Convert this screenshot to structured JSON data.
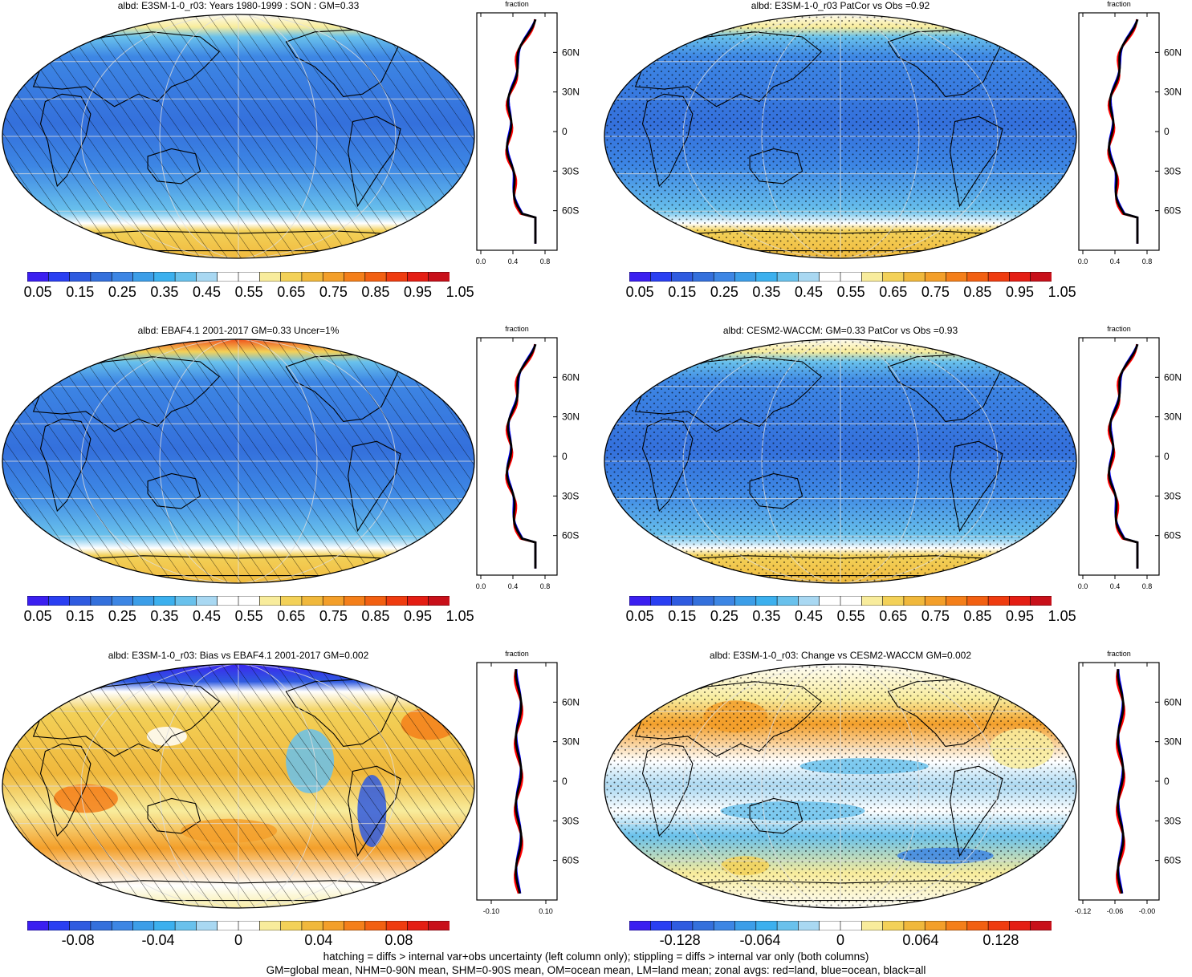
{
  "panels": [
    {
      "id": "p1",
      "title": "albd: E3SM-1-0_r03: Years 1980-1999 : SON : GM=0.33",
      "scheme": "abs",
      "overlay": "hatch",
      "colorbar_labels": [
        "0.05",
        "0.15",
        "0.25",
        "0.35",
        "0.45",
        "0.55",
        "0.65",
        "0.75",
        "0.85",
        "0.95",
        "1.05"
      ],
      "zonal": {
        "title": "fraction",
        "x_ticks": [
          "0.0",
          "0.4",
          "0.8"
        ],
        "lat_labels": [
          "60N",
          "30N",
          "0",
          "30S",
          "60S"
        ]
      }
    },
    {
      "id": "p2",
      "title": "albd: E3SM-1-0_r03 PatCor vs Obs =0.92",
      "scheme": "abs",
      "overlay": "stipple",
      "colorbar_labels": [
        "0.05",
        "0.15",
        "0.25",
        "0.35",
        "0.45",
        "0.55",
        "0.65",
        "0.75",
        "0.85",
        "0.95",
        "1.05"
      ],
      "zonal": {
        "title": "fraction",
        "x_ticks": [
          "0.0",
          "0.4",
          "0.8"
        ],
        "lat_labels": [
          "60N",
          "30N",
          "0",
          "30S",
          "60S"
        ]
      }
    },
    {
      "id": "p3",
      "title": "albd: EBAF4.1 2001-2017 GM=0.33 Uncer=1%",
      "scheme": "abs",
      "overlay": "hatch",
      "colorbar_labels": [
        "0.05",
        "0.15",
        "0.25",
        "0.35",
        "0.45",
        "0.55",
        "0.65",
        "0.75",
        "0.85",
        "0.95",
        "1.05"
      ],
      "zonal": {
        "title": "fraction",
        "x_ticks": [
          "0.0",
          "0.4",
          "0.8"
        ],
        "lat_labels": [
          "60N",
          "30N",
          "0",
          "30S",
          "60S"
        ]
      }
    },
    {
      "id": "p4",
      "title": "albd: CESM2-WACCM: GM=0.33 PatCor vs Obs =0.93",
      "scheme": "abs",
      "overlay": "stipple",
      "colorbar_labels": [
        "0.05",
        "0.15",
        "0.25",
        "0.35",
        "0.45",
        "0.55",
        "0.65",
        "0.75",
        "0.85",
        "0.95",
        "1.05"
      ],
      "zonal": {
        "title": "fraction",
        "x_ticks": [
          "0.0",
          "0.4",
          "0.8"
        ],
        "lat_labels": [
          "60N",
          "30N",
          "0",
          "30S",
          "60S"
        ]
      }
    },
    {
      "id": "p5",
      "title": "albd: E3SM-1-0_r03: Bias vs EBAF4.1 2001-2017  GM=0.002",
      "scheme": "diff",
      "overlay": "hatch",
      "colorbar_labels": [
        "-0.08",
        "-0.04",
        "0",
        "0.04",
        "0.08"
      ],
      "zonal": {
        "title": "fraction",
        "x_ticks": [
          "-0.10",
          "0.10"
        ],
        "lat_labels": [
          "60N",
          "30N",
          "0",
          "30S",
          "60S"
        ]
      }
    },
    {
      "id": "p6",
      "title": "albd: E3SM-1-0_r03: Change vs CESM2-WACCM GM=0.002",
      "scheme": "diff",
      "overlay": "stipple",
      "colorbar_labels": [
        "-0.128",
        "-0.064",
        "0",
        "0.064",
        "0.128"
      ],
      "zonal": {
        "title": "fraction",
        "x_ticks": [
          "-0.12",
          "-0.06",
          "-0.00"
        ],
        "lat_labels": [
          "60N",
          "30N",
          "0",
          "30S",
          "60S"
        ]
      }
    }
  ],
  "colors": {
    "ocean_blue": "#3d8fe0",
    "deep_blue": "#2f6fd8",
    "ice_yellow": "#f3d158",
    "land_line": "#000000",
    "zonal_land": "#ff0000",
    "zonal_ocean": "#0000ff",
    "zonal_all": "#000000"
  },
  "colorbar_abs": [
    "#3b1ff0",
    "#2a3ff2",
    "#2f5be0",
    "#3470dc",
    "#3d86e4",
    "#3c9ee8",
    "#3cb0ee",
    "#69c1ec",
    "#a9d8f2",
    "#ffffff",
    "#ffffff",
    "#f8ec9c",
    "#f3d158",
    "#f0b83c",
    "#f39f2a",
    "#f47f1a",
    "#f26012",
    "#ef3c10",
    "#e41e14",
    "#c8101a"
  ],
  "colorbar_diff": [
    "#3b1ff0",
    "#2a3ff2",
    "#2f5be0",
    "#3470dc",
    "#3d86e4",
    "#3c9ee8",
    "#3cb0ee",
    "#69c1ec",
    "#a9d8f2",
    "#ffffff",
    "#ffffff",
    "#f8ec9c",
    "#f3d158",
    "#f0b83c",
    "#f39f2a",
    "#f47f1a",
    "#f26012",
    "#ef3c10",
    "#e41e14",
    "#c8101a"
  ],
  "footnotes": [
    "hatching = diffs > internal var+obs uncertainty (left column only); stippling = diffs > internal var only (both columns)",
    "GM=global mean, NHM=0-90N mean, SHM=0-90S mean, OM=ocean mean, LM=land mean; zonal avgs: red=land, blue=ocean, black=all"
  ]
}
